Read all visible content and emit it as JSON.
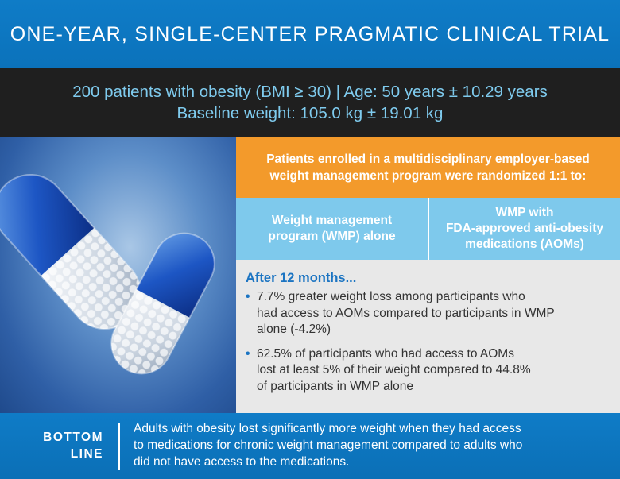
{
  "title": "ONE-YEAR, SINGLE-CENTER PRAGMATIC CLINICAL TRIAL",
  "stats": {
    "line1": "200 patients with obesity (BMI ≥ 30) | Age: 50 years ± 10.29 years",
    "line2": "Baseline weight: 105.0 kg ± 19.01 kg"
  },
  "enrollment": {
    "line1": "Patients enrolled in a multidisciplinary employer-based",
    "line2": "weight management program were randomized 1:1 to:"
  },
  "arms": [
    {
      "line1": "Weight management",
      "line2": "program (WMP) alone"
    },
    {
      "line1": "WMP with",
      "line2": "FDA-approved anti-obesity",
      "line3": "medications (AOMs)"
    }
  ],
  "results": {
    "heading": "After 12 months...",
    "bullet_glyph": "•",
    "items": [
      {
        "line1": "7.7% greater weight loss among participants who",
        "line2": "had access to AOMs compared to participants in WMP",
        "line3": "alone (-4.2%)"
      },
      {
        "line1": "62.5% of participants who had access to AOMs",
        "line2": "lost at least 5% of their weight compared to 44.8%",
        "line3": "of participants in WMP alone"
      }
    ]
  },
  "bottom_line": {
    "label_line1": "BOTTOM",
    "label_line2": "LINE",
    "text_line1": "Adults with obesity lost significantly more weight when they had access",
    "text_line2": "to medications for chronic weight management compared to adults who",
    "text_line3": "did not have access to the medications."
  },
  "image": {
    "icon": "capsules-icon"
  },
  "colors": {
    "primary_blue": "#0f7cc7",
    "dark_band": "#1f1f1f",
    "stats_text": "#7fcbee",
    "orange": "#f39a2b",
    "light_blue": "#7ec9ec",
    "results_bg": "#e8e8e8",
    "accent_blue": "#1b74c2"
  }
}
